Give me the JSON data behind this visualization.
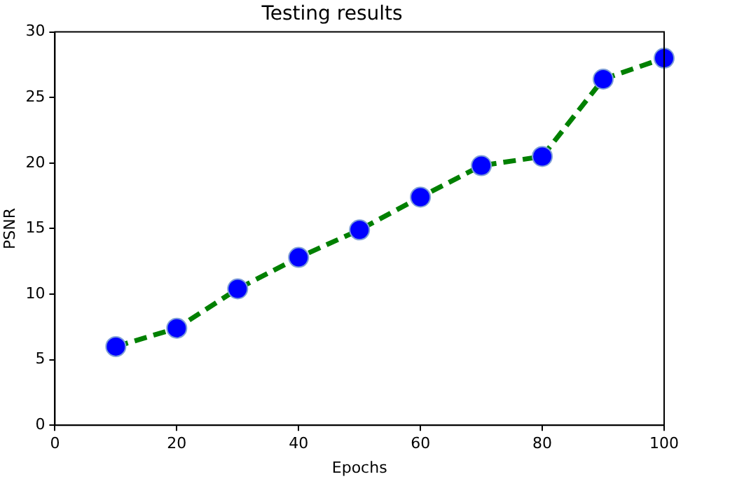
{
  "chart_data": {
    "type": "line",
    "title": "Testing results",
    "xlabel": "Epochs",
    "ylabel": "PSNR",
    "x": [
      10,
      20,
      30,
      40,
      50,
      60,
      70,
      80,
      90,
      100
    ],
    "series": [
      {
        "color": "#008000",
        "values": [
          6.0,
          7.4,
          10.4,
          12.8,
          14.9,
          17.4,
          19.8,
          20.5,
          26.4,
          28.0
        ]
      }
    ],
    "xlim": [
      0,
      100
    ],
    "xticks": [
      0,
      20,
      40,
      60,
      80,
      100
    ],
    "ylim": [
      0,
      30
    ],
    "yticks": [
      0,
      5,
      10,
      15,
      20,
      25,
      30
    ],
    "grid": false,
    "legend": false,
    "marker": "circle",
    "line_style": "dashed"
  }
}
